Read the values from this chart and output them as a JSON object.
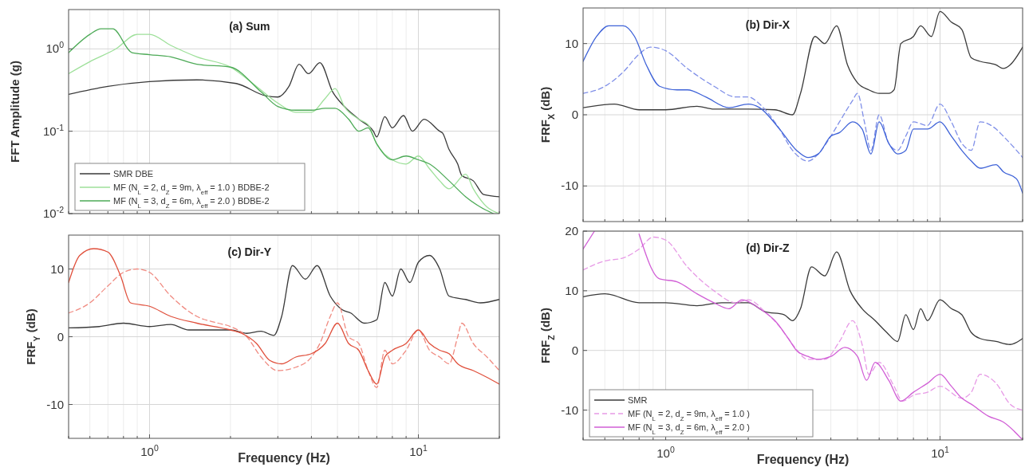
{
  "chart_data": [
    {
      "type": "line",
      "title": "(a) Sum",
      "ylabel": "FFT Amplitude (g)",
      "log": "xy",
      "grid": true,
      "legend": "bottom left",
      "tick_labels": "y",
      "xlim": [
        0.5,
        20
      ],
      "xticks": [
        {
          "value": 0.5,
          "label": null
        },
        {
          "value": 0.6,
          "label": null
        },
        {
          "value": 0.7,
          "label": null
        },
        {
          "value": 0.8,
          "label": null
        },
        {
          "value": 0.9,
          "label": null
        },
        {
          "value": 1,
          "label": null
        },
        {
          "value": 2,
          "label": null
        },
        {
          "value": 3,
          "label": null
        },
        {
          "value": 4,
          "label": null
        },
        {
          "value": 5,
          "label": null
        },
        {
          "value": 6,
          "label": null
        },
        {
          "value": 7,
          "label": null
        },
        {
          "value": 8,
          "label": null
        },
        {
          "value": 9,
          "label": null
        },
        {
          "value": 10,
          "label": null
        },
        {
          "value": 20,
          "label": null
        }
      ],
      "ylim": [
        0.01,
        3
      ],
      "yticks": [
        {
          "value": 0.01,
          "label": "10$^{-2}$"
        },
        {
          "value": 0.1,
          "label": "10$^{-1}$"
        },
        {
          "value": 1,
          "label": "10$^{0}$"
        }
      ],
      "series": [
        {
          "name": "SMR DBE",
          "color": "#3a3a3a",
          "line_style": "solid",
          "x": [
            0.5,
            0.7,
            1.0,
            1.5,
            2.1,
            2.7,
            3.0,
            3.3,
            3.6,
            3.9,
            4.3,
            4.8,
            5.3,
            6.0,
            6.8,
            7.0,
            7.5,
            8.0,
            8.8,
            9.5,
            10.5,
            12,
            12.3,
            13,
            14,
            14.5,
            16,
            17.5,
            20
          ],
          "values": [
            0.28,
            0.35,
            0.4,
            0.42,
            0.38,
            0.27,
            0.26,
            0.35,
            0.65,
            0.5,
            0.68,
            0.3,
            0.2,
            0.14,
            0.1,
            0.085,
            0.15,
            0.11,
            0.155,
            0.1,
            0.14,
            0.1,
            0.095,
            0.06,
            0.04,
            0.029,
            0.025,
            0.017,
            0.016
          ]
        },
        {
          "name": "MF (N$_{L}$ = 2, d$_{Z}$ = 9m, λ$_{eff}$ = 1.0 ) BDBE-2",
          "color": "#9ee09a",
          "line_style": "solid",
          "x": [
            0.5,
            0.6,
            0.75,
            0.9,
            1.0,
            1.2,
            1.5,
            2.0,
            2.5,
            3.0,
            3.5,
            4.0,
            4.5,
            4.9,
            5.3,
            6.0,
            6.5,
            7.0,
            8.0,
            9.0,
            10,
            11,
            12,
            13,
            15,
            16,
            18,
            20
          ],
          "values": [
            0.5,
            0.7,
            1.0,
            1.5,
            1.5,
            1.1,
            0.8,
            0.6,
            0.35,
            0.22,
            0.17,
            0.17,
            0.25,
            0.33,
            0.2,
            0.14,
            0.12,
            0.07,
            0.045,
            0.04,
            0.05,
            0.035,
            0.025,
            0.02,
            0.03,
            0.02,
            0.012,
            0.01
          ]
        },
        {
          "name": "MF (N$_{L}$ = 3, d$_{Z}$ = 6m, λ$_{eff}$ = 2.0 ) BDBE-2",
          "color": "#4daa57",
          "line_style": "solid",
          "x": [
            0.5,
            0.6,
            0.66,
            0.73,
            0.86,
            1.0,
            1.2,
            1.5,
            2.0,
            2.6,
            3.0,
            3.5,
            4.0,
            4.5,
            4.9,
            5.5,
            6.0,
            6.5,
            7.0,
            8.0,
            9.0,
            10,
            11,
            13,
            15,
            17,
            19
          ],
          "values": [
            0.9,
            1.5,
            1.75,
            1.75,
            0.9,
            0.85,
            0.8,
            0.65,
            0.6,
            0.3,
            0.2,
            0.18,
            0.18,
            0.19,
            0.19,
            0.14,
            0.1,
            0.11,
            0.07,
            0.045,
            0.05,
            0.045,
            0.04,
            0.025,
            0.016,
            0.012,
            0.01
          ]
        }
      ]
    },
    {
      "type": "line",
      "title": "(b) Dir-X",
      "ylabel": "FRF$_{X}$ (dB)",
      "log": "x",
      "grid": true,
      "tick_labels": "y",
      "xlim": [
        0.5,
        20
      ],
      "xticks": [
        {
          "value": 0.5,
          "label": null
        },
        {
          "value": 0.6,
          "label": null
        },
        {
          "value": 0.7,
          "label": null
        },
        {
          "value": 0.8,
          "label": null
        },
        {
          "value": 0.9,
          "label": null
        },
        {
          "value": 1,
          "label": null
        },
        {
          "value": 2,
          "label": null
        },
        {
          "value": 3,
          "label": null
        },
        {
          "value": 4,
          "label": null
        },
        {
          "value": 5,
          "label": null
        },
        {
          "value": 6,
          "label": null
        },
        {
          "value": 7,
          "label": null
        },
        {
          "value": 8,
          "label": null
        },
        {
          "value": 9,
          "label": null
        },
        {
          "value": 10,
          "label": null
        },
        {
          "value": 20,
          "label": null
        }
      ],
      "ylim": [
        -15,
        15
      ],
      "yticks": [
        -10,
        0,
        10
      ],
      "series": [
        {
          "color": "#3a3a3a",
          "line_style": "solid",
          "x": [
            0.5,
            0.65,
            0.8,
            1.0,
            1.3,
            1.5,
            2,
            2.5,
            2.9,
            3.1,
            3.5,
            3.8,
            4.2,
            4.6,
            5.0,
            5.5,
            6,
            6.5,
            6.8,
            7.2,
            8,
            8.5,
            9.3,
            10,
            11,
            12,
            13,
            14,
            16,
            17,
            18,
            20
          ],
          "values": [
            1,
            1.5,
            0.7,
            0.7,
            1.2,
            0.8,
            0.8,
            0.7,
            0,
            3,
            11,
            10,
            12.5,
            7,
            4.5,
            3.5,
            3,
            3,
            3.5,
            10,
            11,
            12.5,
            11,
            14.5,
            13,
            12,
            8,
            7.5,
            7,
            6.5,
            7,
            9.5
          ]
        },
        {
          "color": "#7f8fe8",
          "line_style": "dashed",
          "x": [
            0.5,
            0.6,
            0.7,
            0.8,
            0.88,
            1.0,
            1.2,
            1.5,
            1.8,
            2.0,
            2.2,
            2.6,
            2.9,
            3.3,
            3.6,
            4,
            4.3,
            4.8,
            5.0,
            5.3,
            5.6,
            6,
            6.5,
            7,
            7.5,
            8,
            9,
            10,
            11,
            12,
            13,
            14,
            16,
            17,
            19,
            20
          ],
          "values": [
            3,
            4,
            6,
            8.5,
            9.5,
            9,
            6.5,
            4,
            2.5,
            2.5,
            1.5,
            -2,
            -5,
            -6.5,
            -5.5,
            -3,
            -1,
            2,
            3,
            -1,
            -5,
            0,
            -4,
            -5,
            -3,
            -1,
            -1.5,
            1.5,
            -1,
            -4,
            -5,
            -1,
            -2,
            -3,
            -5,
            -6
          ]
        },
        {
          "color": "#3f63d8",
          "line_style": "solid",
          "x": [
            0.5,
            0.56,
            0.62,
            0.7,
            0.77,
            0.85,
            0.95,
            1.1,
            1.2,
            1.4,
            1.7,
            2.0,
            2.2,
            2.6,
            3.0,
            3.3,
            3.6,
            4,
            4.3,
            4.8,
            5.2,
            5.6,
            6,
            6.5,
            7,
            7.5,
            8,
            9,
            10,
            11,
            12,
            13,
            14,
            16,
            17,
            19,
            20
          ],
          "values": [
            7.5,
            11,
            12.5,
            12.5,
            11,
            7,
            4,
            3.5,
            3.5,
            2.5,
            1,
            1.5,
            1,
            -2,
            -5,
            -6,
            -5.5,
            -3,
            -2.5,
            -1,
            -2,
            -5.5,
            -1,
            -4,
            -5.5,
            -5,
            -2,
            -2,
            -1,
            -3,
            -5,
            -6.5,
            -7.5,
            -7,
            -8,
            -9,
            -11
          ]
        }
      ]
    },
    {
      "type": "line",
      "title": "(c) Dir-Y",
      "ylabel": "FRF$_{Y}$ (dB)",
      "xlabel": "Frequency (Hz)",
      "log": "x",
      "grid": true,
      "xlim": [
        0.5,
        20
      ],
      "xticks": [
        {
          "value": 0.5,
          "label": null
        },
        {
          "value": 0.6,
          "label": null
        },
        {
          "value": 0.7,
          "label": null
        },
        {
          "value": 0.8,
          "label": null
        },
        {
          "value": 0.9,
          "label": null
        },
        {
          "value": 1,
          "label": "10$^{0}$"
        },
        {
          "value": 2,
          "label": null
        },
        {
          "value": 3,
          "label": null
        },
        {
          "value": 4,
          "label": null
        },
        {
          "value": 5,
          "label": null
        },
        {
          "value": 6,
          "label": null
        },
        {
          "value": 7,
          "label": null
        },
        {
          "value": 8,
          "label": null
        },
        {
          "value": 9,
          "label": null
        },
        {
          "value": 10,
          "label": "10$^{1}$"
        },
        {
          "value": 20,
          "label": null
        }
      ],
      "ylim": [
        -15,
        15
      ],
      "yticks": [
        -10,
        0,
        10
      ],
      "series": [
        {
          "color": "#3a3a3a",
          "line_style": "solid",
          "x": [
            0.5,
            0.65,
            0.8,
            1.0,
            1.2,
            1.4,
            2,
            2.3,
            2.6,
            2.9,
            3.1,
            3.4,
            3.8,
            4.2,
            4.7,
            5.2,
            5.6,
            6.3,
            7,
            7.5,
            8,
            8.6,
            9.3,
            10,
            11,
            12,
            13,
            15,
            17,
            20
          ],
          "values": [
            1.3,
            1.5,
            2,
            1.5,
            1.8,
            1,
            1,
            0.5,
            0.8,
            0.2,
            3,
            10.5,
            8.5,
            10.5,
            6,
            4,
            3.5,
            2,
            2.5,
            8,
            6,
            10,
            8,
            11,
            12,
            10,
            6,
            5.5,
            5,
            5.5
          ]
        },
        {
          "color": "#f08a80",
          "line_style": "dashed",
          "x": [
            0.5,
            0.6,
            0.7,
            0.8,
            0.9,
            1.0,
            1.2,
            1.5,
            1.8,
            2.0,
            2.3,
            2.6,
            3.0,
            3.5,
            4,
            4.3,
            4.7,
            5.0,
            5.5,
            6,
            6.5,
            7,
            7.5,
            8,
            9,
            10,
            11,
            12,
            13,
            14,
            14.5,
            16,
            18,
            20
          ],
          "values": [
            3.5,
            5,
            7.5,
            9.5,
            10,
            9.5,
            6,
            3,
            2,
            1.5,
            0,
            -3,
            -5,
            -4.5,
            -3,
            -1,
            3,
            5,
            0,
            -1,
            -5,
            -7.5,
            -2,
            -4,
            -2,
            1,
            -2,
            -3,
            -4,
            0,
            2,
            -1,
            -3,
            -5
          ]
        },
        {
          "color": "#e0503c",
          "line_style": "solid",
          "x": [
            0.5,
            0.55,
            0.62,
            0.7,
            0.78,
            0.85,
            1.0,
            1.2,
            1.5,
            2,
            2.2,
            2.5,
            2.8,
            3.1,
            3.5,
            4,
            4.5,
            5.0,
            5.5,
            6,
            6.5,
            7,
            7.5,
            8,
            9,
            10,
            11,
            12,
            13,
            14,
            16,
            18,
            20
          ],
          "values": [
            8,
            12,
            13,
            12.5,
            9,
            5,
            4.5,
            3,
            2,
            1,
            0.5,
            -1,
            -3.5,
            -4,
            -3,
            -2.5,
            -1,
            2,
            -1,
            -2,
            -5,
            -7,
            -3,
            -2,
            -1,
            1,
            -1,
            -2,
            -2.5,
            -4,
            -5,
            -6,
            -7
          ]
        }
      ]
    },
    {
      "type": "line",
      "title": "(d) Dir-Z",
      "ylabel": "FRF$_{Z}$ (dB)",
      "xlabel": "Frequency (Hz)",
      "log": "x",
      "grid": true,
      "legend": "bottom left",
      "xlim": [
        0.5,
        20
      ],
      "xticks": [
        {
          "value": 0.5,
          "label": null
        },
        {
          "value": 0.6,
          "label": null
        },
        {
          "value": 0.7,
          "label": null
        },
        {
          "value": 0.8,
          "label": null
        },
        {
          "value": 0.9,
          "label": null
        },
        {
          "value": 1,
          "label": "10$^{0}$"
        },
        {
          "value": 2,
          "label": null
        },
        {
          "value": 3,
          "label": null
        },
        {
          "value": 4,
          "label": null
        },
        {
          "value": 5,
          "label": null
        },
        {
          "value": 6,
          "label": null
        },
        {
          "value": 7,
          "label": null
        },
        {
          "value": 8,
          "label": null
        },
        {
          "value": 9,
          "label": null
        },
        {
          "value": 10,
          "label": "10$^{1}$"
        },
        {
          "value": 20,
          "label": null
        }
      ],
      "ylim": [
        -15,
        20
      ],
      "yticks": [
        -10,
        0,
        10,
        20
      ],
      "series": [
        {
          "name": "SMR",
          "color": "#3a3a3a",
          "line_style": "solid",
          "x": [
            0.5,
            0.6,
            0.8,
            1.0,
            1.3,
            1.6,
            2,
            2.3,
            2.7,
            2.9,
            3.1,
            3.4,
            3.8,
            4.2,
            4.7,
            5.2,
            5.8,
            6.4,
            7,
            7.5,
            8,
            8.5,
            9,
            10,
            11,
            12,
            13,
            14,
            16,
            18,
            20
          ],
          "values": [
            9,
            9.5,
            8,
            8,
            7.5,
            8,
            8,
            6.5,
            6,
            5,
            7,
            14,
            12.5,
            16.5,
            10,
            7,
            5,
            3,
            1.5,
            6,
            3.5,
            7,
            5,
            8.5,
            7,
            6,
            3,
            2,
            1.5,
            1,
            2
          ]
        },
        {
          "name": "MF (N$_{L}$ = 2, d$_{Z}$ = 9m, λ$_{eff}$ = 1.0 )",
          "color": "#e79ae6",
          "line_style": "dashed",
          "x": [
            0.5,
            0.6,
            0.7,
            0.8,
            0.9,
            1.0,
            1.2,
            1.5,
            1.8,
            2,
            2.3,
            2.6,
            2.9,
            3.3,
            3.8,
            4.3,
            4.8,
            5.2,
            5.5,
            6,
            6.8,
            7.3,
            8,
            9,
            10,
            12,
            13,
            14,
            16,
            18,
            20
          ],
          "values": [
            13.5,
            15,
            15.5,
            17,
            19,
            18.5,
            14,
            10,
            8,
            8.5,
            6.5,
            4,
            1,
            -1.5,
            -1.5,
            1.5,
            5,
            1,
            -4,
            -2,
            -6,
            -8.5,
            -7.5,
            -7,
            -6,
            -8,
            -7,
            -4,
            -5.5,
            -9,
            -10
          ]
        },
        {
          "name": "MF (N$_{L}$ = 3, d$_{Z}$ = 6m, λ$_{eff}$ = 2.0 )",
          "color": "#d15fd6",
          "line_style": "solid",
          "x": [
            0.5,
            0.55,
            0.6,
            0.7,
            0.8,
            0.95,
            1.1,
            1.3,
            1.5,
            1.7,
            1.9,
            2.2,
            2.5,
            2.8,
            3.0,
            3.3,
            3.6,
            4,
            4.5,
            5,
            5.4,
            5.8,
            6.5,
            7.2,
            8,
            9,
            10,
            11,
            12,
            13,
            15,
            17,
            20
          ],
          "values": [
            17,
            20,
            null,
            null,
            19.5,
            12,
            11.5,
            9.5,
            8,
            7,
            8.5,
            7,
            5,
            2,
            0,
            -1,
            -1.5,
            -1,
            0.5,
            -1,
            -5,
            -2,
            -5,
            -8.5,
            -7,
            -5.5,
            -4,
            -6,
            -8,
            -9,
            -11,
            -12,
            -15
          ]
        }
      ]
    }
  ]
}
